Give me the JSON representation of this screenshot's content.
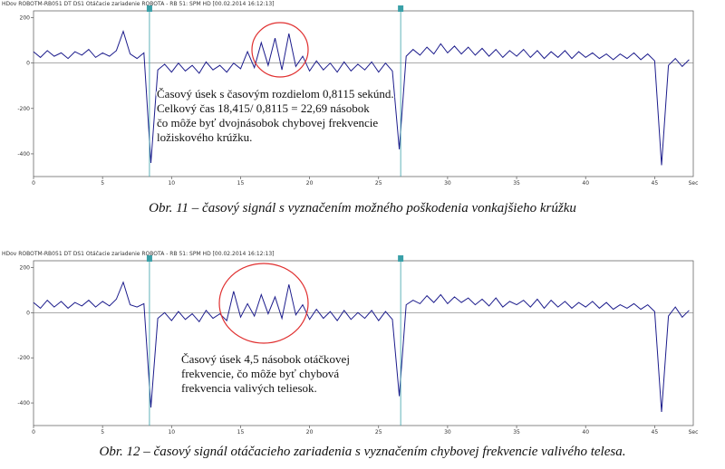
{
  "chart_data": [
    {
      "type": "line",
      "header": "HDov ROBOTM-RB051 DT DS1 Otáčacie zariadenie ROBOTA - RB 51: SPM HD [00.02.2014 16:12:13]",
      "annotation": [
        "Časový úsek s časovým rozdielom 0,8115 sekúnd.",
        "Celkový čas 18,415/ 0,8115 = 22,69 násobok",
        "čo môže byť dvojnásobok chybovej frekvencie",
        "ložiskového krúžku."
      ],
      "caption": "Obr. 11 – časový signál s vyznačením možného poškodenia vonkajšieho krúžku",
      "x_unit": "Sec",
      "x": [
        0,
        0.5,
        1,
        1.5,
        2,
        2.5,
        3,
        3.5,
        4,
        4.5,
        5,
        5.5,
        6,
        6.5,
        7,
        7.5,
        8,
        8.5,
        9,
        9.5,
        10,
        10.5,
        11,
        11.5,
        12,
        12.5,
        13,
        13.5,
        14,
        14.5,
        15,
        15.5,
        16,
        16.5,
        17,
        17.5,
        18,
        18.5,
        19,
        19.5,
        20,
        20.5,
        21,
        21.5,
        22,
        22.5,
        23,
        23.5,
        24,
        24.5,
        25,
        25.5,
        26,
        26.5,
        27,
        27.5,
        28,
        28.5,
        29,
        29.5,
        30,
        30.5,
        31,
        31.5,
        32,
        32.5,
        33,
        33.5,
        34,
        34.5,
        35,
        35.5,
        36,
        36.5,
        37,
        37.5,
        38,
        38.5,
        39,
        39.5,
        40,
        40.5,
        41,
        41.5,
        42,
        42.5,
        43,
        43.5,
        44,
        44.5,
        45,
        45.5,
        46,
        46.5,
        47,
        47.5
      ],
      "series": [
        {
          "color": "#1c1c8c",
          "values": [
            50,
            25,
            55,
            30,
            45,
            20,
            50,
            35,
            60,
            25,
            45,
            30,
            55,
            140,
            40,
            20,
            45,
            -440,
            -30,
            -5,
            -40,
            0,
            -35,
            -10,
            -45,
            5,
            -30,
            -10,
            -40,
            0,
            -25,
            50,
            -20,
            90,
            -10,
            110,
            -30,
            130,
            -15,
            30,
            -35,
            10,
            -30,
            0,
            -40,
            5,
            -35,
            -5,
            -30,
            5,
            -40,
            0,
            -35,
            -380,
            30,
            60,
            35,
            70,
            40,
            85,
            45,
            75,
            40,
            70,
            35,
            65,
            30,
            60,
            25,
            55,
            30,
            60,
            25,
            55,
            20,
            50,
            25,
            55,
            20,
            50,
            25,
            45,
            20,
            40,
            15,
            40,
            20,
            45,
            15,
            40,
            10,
            -450,
            -10,
            20,
            -15,
            15
          ]
        }
      ],
      "cursors": [
        8.4,
        26.6
      ],
      "xlim": [
        0,
        47.8
      ],
      "ylim": [
        -500,
        230
      ],
      "xticks": [
        0,
        5,
        10,
        15,
        20,
        25,
        30,
        35,
        40,
        45
      ],
      "yticks": [
        -400,
        -200,
        0,
        200
      ]
    },
    {
      "type": "line",
      "header": "HDov ROBOTM-RB051 DT DS1 Otáčacie zariadenie ROBOTA - RB 51: SPM HD [00.02.2014 16:12:13]",
      "annotation": [
        "Časový úsek 4,5 násobok otáčkovej",
        "frekvencie, čo môže byť chybová",
        "frekvencia valivých teliesok."
      ],
      "caption": "Obr. 12 – časový signál otáčacieho zariadenia s vyznačením chybovej frekvencie valivého telesa.",
      "x_unit": "Sec",
      "x": [
        0,
        0.5,
        1,
        1.5,
        2,
        2.5,
        3,
        3.5,
        4,
        4.5,
        5,
        5.5,
        6,
        6.5,
        7,
        7.5,
        8,
        8.5,
        9,
        9.5,
        10,
        10.5,
        11,
        11.5,
        12,
        12.5,
        13,
        13.5,
        14,
        14.5,
        15,
        15.5,
        16,
        16.5,
        17,
        17.5,
        18,
        18.5,
        19,
        19.5,
        20,
        20.5,
        21,
        21.5,
        22,
        22.5,
        23,
        23.5,
        24,
        24.5,
        25,
        25.5,
        26,
        26.5,
        27,
        27.5,
        28,
        28.5,
        29,
        29.5,
        30,
        30.5,
        31,
        31.5,
        32,
        32.5,
        33,
        33.5,
        34,
        34.5,
        35,
        35.5,
        36,
        36.5,
        37,
        37.5,
        38,
        38.5,
        39,
        39.5,
        40,
        40.5,
        41,
        41.5,
        42,
        42.5,
        43,
        43.5,
        44,
        44.5,
        45,
        45.5,
        46,
        46.5,
        47,
        47.5
      ],
      "series": [
        {
          "color": "#1c1c8c",
          "values": [
            45,
            20,
            55,
            25,
            50,
            20,
            45,
            30,
            55,
            25,
            50,
            30,
            60,
            135,
            35,
            25,
            40,
            -420,
            -25,
            0,
            -35,
            5,
            -30,
            -5,
            -40,
            10,
            -25,
            -5,
            -35,
            95,
            -20,
            40,
            -15,
            80,
            -5,
            70,
            -25,
            125,
            -10,
            35,
            -30,
            15,
            -25,
            5,
            -35,
            10,
            -30,
            0,
            -25,
            10,
            -35,
            5,
            -30,
            -370,
            35,
            55,
            40,
            75,
            45,
            80,
            40,
            70,
            45,
            65,
            35,
            60,
            30,
            65,
            25,
            50,
            35,
            55,
            25,
            60,
            20,
            55,
            25,
            50,
            20,
            45,
            25,
            50,
            20,
            45,
            15,
            35,
            20,
            40,
            15,
            35,
            5,
            -440,
            -15,
            25,
            -20,
            10
          ]
        }
      ],
      "cursors": [
        8.4,
        26.6
      ],
      "xlim": [
        0,
        47.8
      ],
      "ylim": [
        -500,
        230
      ],
      "xticks": [
        0,
        5,
        10,
        15,
        20,
        25,
        30,
        35,
        40,
        45
      ],
      "yticks": [
        -400,
        -200,
        0,
        200
      ]
    }
  ]
}
